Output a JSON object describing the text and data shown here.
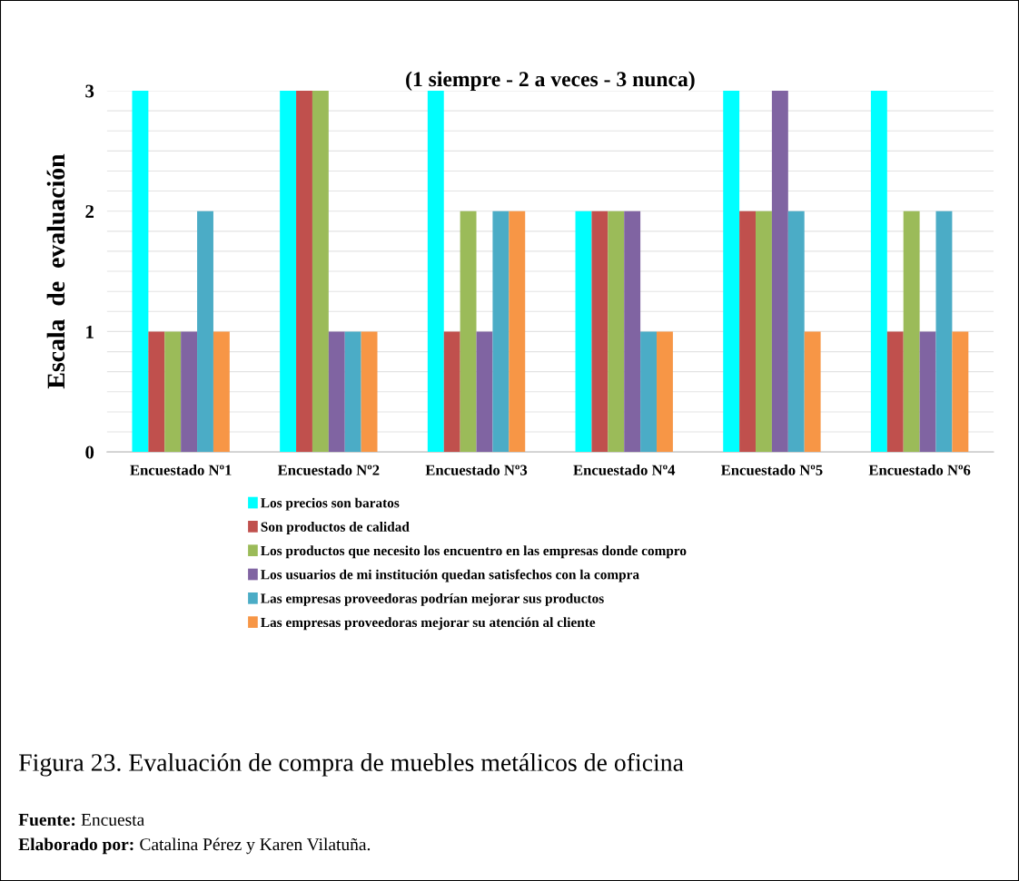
{
  "chart_data": {
    "type": "bar",
    "title": "(1 siempre - 2 a veces - 3 nunca)",
    "ylabel": "Escala  de  evaluación",
    "categories": [
      "Encuestado Nº1",
      "Encuestado Nº2",
      "Encuestado Nº3",
      "Encuestado Nº4",
      "Encuestado Nº5",
      "Encuestado Nº6"
    ],
    "series": [
      {
        "name": "Los precios son baratos",
        "color": "#00ffff",
        "values": [
          3,
          3,
          3,
          2,
          3,
          3
        ]
      },
      {
        "name": "Son productos de calidad",
        "color": "#c0504d",
        "values": [
          1,
          3,
          1,
          2,
          2,
          1
        ]
      },
      {
        "name": "Los productos que necesito los encuentro en las empresas donde compro",
        "color": "#9bbb59",
        "values": [
          1,
          3,
          2,
          2,
          2,
          2
        ]
      },
      {
        "name": "Los usuarios de mi institución quedan satisfechos con la compra",
        "color": "#8064a2",
        "values": [
          1,
          1,
          1,
          2,
          3,
          1
        ]
      },
      {
        "name": "Las empresas proveedoras podrían mejorar sus productos",
        "color": "#4bacc6",
        "values": [
          2,
          1,
          2,
          1,
          2,
          2
        ]
      },
      {
        "name": "Las empresas proveedoras mejorar su atención al cliente",
        "color": "#f79646",
        "values": [
          1,
          1,
          2,
          1,
          1,
          1
        ]
      }
    ],
    "ylim": [
      0,
      3
    ],
    "yticks": [
      0,
      {
        "value": 0.167,
        "label": null
      },
      {
        "value": 0.333,
        "label": null
      },
      {
        "value": 0.5,
        "label": null
      },
      {
        "value": 0.667,
        "label": null
      },
      {
        "value": 0.833,
        "label": null
      },
      1,
      {
        "value": 1.167,
        "label": null
      },
      {
        "value": 1.333,
        "label": null
      },
      {
        "value": 1.5,
        "label": null
      },
      {
        "value": 1.667,
        "label": null
      },
      {
        "value": 1.833,
        "label": null
      },
      2,
      {
        "value": 2.167,
        "label": null
      },
      {
        "value": 2.333,
        "label": null
      },
      {
        "value": 2.5,
        "label": null
      },
      {
        "value": 2.667,
        "label": null
      },
      {
        "value": 2.833,
        "label": null
      },
      3
    ],
    "grid": "y",
    "legend": "bottom",
    "annotations": [
      "Figura 23. Evaluación de compra de muebles metálicos de oficina",
      "Fuente: Encuesta",
      "Elaborado por: Catalina Pérez y Karen Vilatuña."
    ]
  }
}
